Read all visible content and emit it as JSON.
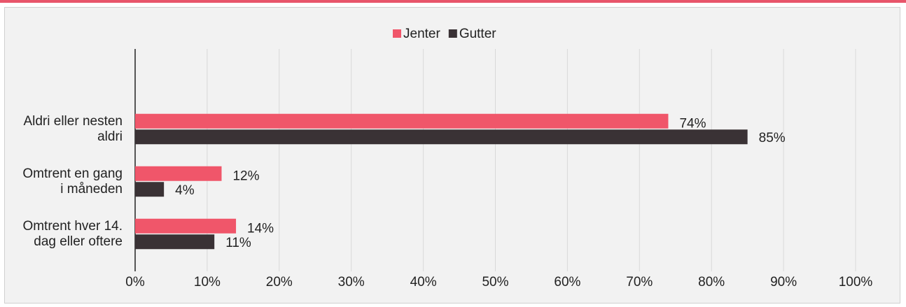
{
  "chart_data": {
    "type": "hbar",
    "categories": [
      "Aldri eller nesten aldri",
      "Omtrent en gang i måneden",
      "Omtrent hver 14. dag eller oftere"
    ],
    "series": [
      {
        "name": "Jenter",
        "color": "#f0566a",
        "values": [
          74,
          12,
          14
        ],
        "value_labels": [
          "74%",
          "12%",
          "14%"
        ]
      },
      {
        "name": "Gutter",
        "color": "#3a3235",
        "values": [
          85,
          4,
          11
        ],
        "value_labels": [
          "85%",
          "4%",
          "11%"
        ]
      }
    ],
    "xlim": [
      0,
      100
    ],
    "xticks": [
      {
        "value": 0,
        "label": "0%"
      },
      {
        "value": 10,
        "label": "10%"
      },
      {
        "value": 20,
        "label": "20%"
      },
      {
        "value": 30,
        "label": "30%"
      },
      {
        "value": 40,
        "label": "40%"
      },
      {
        "value": 50,
        "label": "50%"
      },
      {
        "value": 60,
        "label": "60%"
      },
      {
        "value": 70,
        "label": "70%"
      },
      {
        "value": 80,
        "label": "80%"
      },
      {
        "value": 90,
        "label": "90%"
      },
      {
        "value": 100,
        "label": "100%"
      }
    ],
    "grid": true,
    "legend": "top"
  }
}
